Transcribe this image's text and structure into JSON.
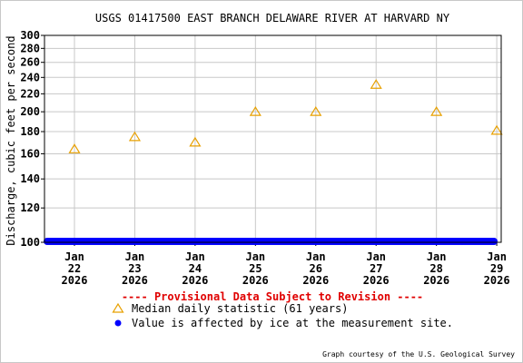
{
  "chart_data": {
    "type": "scatter",
    "title": "USGS 01417500 EAST BRANCH DELAWARE RIVER AT HARVARD NY",
    "ylabel": "Discharge, cubic feet per second",
    "y_scale": "log",
    "ylim": [
      100,
      300
    ],
    "y_ticks": [
      "300",
      "280",
      "260",
      "240",
      "220",
      "200",
      "180",
      "160",
      "140",
      "120",
      "100"
    ],
    "y_tick_values": [
      300,
      280,
      260,
      240,
      220,
      200,
      180,
      160,
      140,
      120,
      100
    ],
    "x_ticks": [
      {
        "day": 0,
        "month": "Jan",
        "date": "22",
        "year": "2026"
      },
      {
        "day": 1,
        "month": "Jan",
        "date": "23",
        "year": "2026"
      },
      {
        "day": 2,
        "month": "Jan",
        "date": "24",
        "year": "2026"
      },
      {
        "day": 3,
        "month": "Jan",
        "date": "25",
        "year": "2026"
      },
      {
        "day": 4,
        "month": "Jan",
        "date": "26",
        "year": "2026"
      },
      {
        "day": 5,
        "month": "Jan",
        "date": "27",
        "year": "2026"
      },
      {
        "day": 6,
        "month": "Jan",
        "date": "28",
        "year": "2026"
      },
      {
        "day": 7,
        "month": "Jan",
        "date": "29",
        "year": "2026"
      }
    ],
    "series": [
      {
        "name": "Median daily statistic (61 years)",
        "marker": "triangle",
        "color": "#E8A000",
        "points": [
          {
            "date": "Jan 22 2026",
            "value": 164
          },
          {
            "date": "Jan 23 2026",
            "value": 175
          },
          {
            "date": "Jan 24 2026",
            "value": 170
          },
          {
            "date": "Jan 25 2026",
            "value": 200
          },
          {
            "date": "Jan 26 2026",
            "value": 200
          },
          {
            "date": "Jan 27 2026",
            "value": 231
          },
          {
            "date": "Jan 28 2026",
            "value": 200
          },
          {
            "date": "Jan 29 2026",
            "value": 181
          }
        ]
      },
      {
        "name": "Value is affected by ice at the measurement site.",
        "marker": "dot",
        "color": "#0000FF",
        "value": 100,
        "start_date": "Jan 22 2026",
        "end_date": "Jan 29 2026"
      }
    ],
    "provisional_note": "---- Provisional Data Subject to Revision ----",
    "provisional_color": "#E00000",
    "credit": "Graph courtesy of the U.S. Geological Survey",
    "grid": true,
    "legend_placement": "bottom"
  }
}
